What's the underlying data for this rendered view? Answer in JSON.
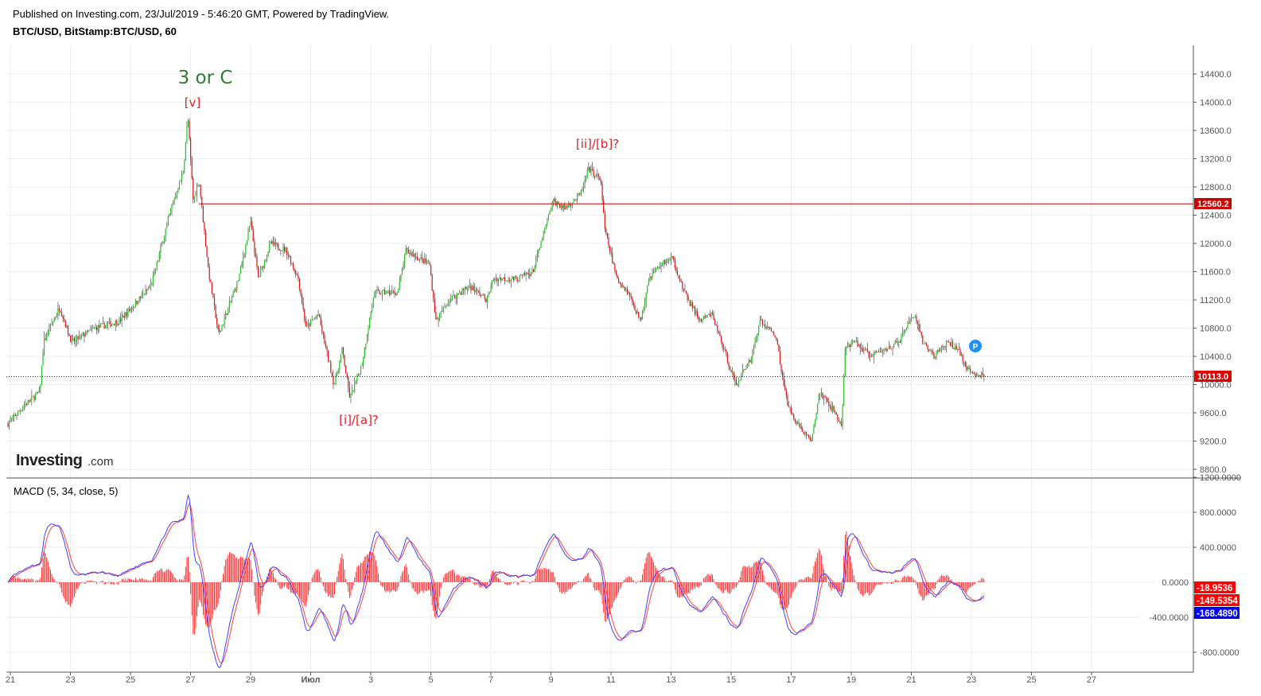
{
  "header": {
    "published": "Published on Investing.com, 23/Jul/2019 - 5:46:20 GMT, Powered by TradingView.",
    "symbol": "BTC/USD, BitStamp:BTC/USD, 60"
  },
  "logo": {
    "text": "Investing",
    "suffix": ".com"
  },
  "colors": {
    "up": "#22c422",
    "down": "#e01010",
    "macd": "#4040ff",
    "signal": "#ff4040",
    "hline": "#cc0000",
    "grid": "#eeeeee"
  },
  "chart_data": {
    "type": "candlestick",
    "timeframe": "60",
    "price_axis": {
      "min": 8600,
      "max": 14800,
      "ticks": [
        8800,
        9200,
        9600,
        10000,
        10400,
        10800,
        11200,
        11600,
        12000,
        12400,
        12800,
        13200,
        13600,
        14000,
        14400
      ],
      "decimals": 1
    },
    "x_axis": {
      "start_day_label": "21",
      "tick_labels": [
        "21",
        "23",
        "25",
        "27",
        "29",
        "Июл",
        "3",
        "5",
        "7",
        "9",
        "11",
        "13",
        "15",
        "17",
        "19",
        "21",
        "23",
        "25",
        "27"
      ],
      "tick_days": [
        0,
        2,
        4,
        6,
        8,
        10,
        12,
        14,
        16,
        18,
        20,
        22,
        24,
        26,
        28,
        30,
        32,
        34,
        36
      ],
      "day_range": [
        -0.15,
        38.4
      ]
    },
    "price_path_days": [
      -0.08,
      0.45,
      0.98,
      1.11,
      1.64,
      2.04,
      2.83,
      3.63,
      4.69,
      5.35,
      5.75,
      5.91,
      6.09,
      6.28,
      6.6,
      6.94,
      7.6,
      8.0,
      8.26,
      8.66,
      9.19,
      9.59,
      9.85,
      10.25,
      10.78,
      11.05,
      11.31,
      11.71,
      12.11,
      12.9,
      13.17,
      13.96,
      14.17,
      14.62,
      15.28,
      15.87,
      16.08,
      16.87,
      17.4,
      17.67,
      18.07,
      18.46,
      18.99,
      19.26,
      19.66,
      19.79,
      20.19,
      20.58,
      20.98,
      21.25,
      21.64,
      22.04,
      22.44,
      22.97,
      23.36,
      23.76,
      24.16,
      24.69,
      24.95,
      25.48,
      25.88,
      26.28,
      26.68,
      26.94,
      27.47,
      27.68,
      27.79,
      28.13,
      28.66,
      29.59,
      30.07,
      30.38,
      30.78,
      31.18,
      31.58,
      31.84,
      32.42
    ],
    "price_path_values": [
      9450,
      9700,
      9900,
      10600,
      11100,
      10600,
      10800,
      10900,
      11400,
      12500,
      13000,
      13800,
      12600,
      12900,
      11600,
      10700,
      11500,
      12300,
      11500,
      12000,
      11900,
      11500,
      10800,
      11000,
      10000,
      10500,
      9800,
      10300,
      11300,
      11300,
      11900,
      11700,
      10900,
      11200,
      11400,
      11200,
      11500,
      11500,
      11600,
      12000,
      12600,
      12500,
      12700,
      13050,
      12900,
      12200,
      11500,
      11300,
      10900,
      11500,
      11700,
      11800,
      11300,
      10900,
      11000,
      10500,
      10000,
      10400,
      10900,
      10700,
      9700,
      9400,
      9200,
      9900,
      9600,
      9400,
      10500,
      10600,
      10400,
      10600,
      11000,
      10600,
      10400,
      10600,
      10500,
      10200,
      10113
    ],
    "horizontal_line": {
      "value": 12560.2,
      "label": "12560.2"
    },
    "last_price": {
      "value": 10113.0,
      "label": "10113.0"
    },
    "annotations": [
      {
        "text": "3 or C",
        "color": "#2e7d32"
      },
      {
        "text": "[v]",
        "color": "#e02020"
      },
      {
        "text": "[ii]/[b]?",
        "color": "#e02020"
      },
      {
        "text": "[i]/[a]?",
        "color": "#e02020"
      }
    ],
    "marker": "P",
    "macd": {
      "title": "MACD (5, 34, close, 5)",
      "fast": 5,
      "slow": 34,
      "signal": 5,
      "axis": {
        "min": -1000,
        "max": 1400,
        "ticks": [
          1200,
          800,
          400,
          0,
          -400,
          -800
        ],
        "tick_labels": [
          "1200.0000",
          "800.0000",
          "400.0000",
          "0.0000",
          "-400.0000",
          "-800.0000"
        ]
      },
      "last_values": [
        {
          "label": "-18.9536",
          "color": "#ff0000"
        },
        {
          "label": "-149.5354",
          "color": "#ff0000"
        },
        {
          "label": "-168.4890",
          "color": "#0000ff"
        }
      ]
    }
  }
}
